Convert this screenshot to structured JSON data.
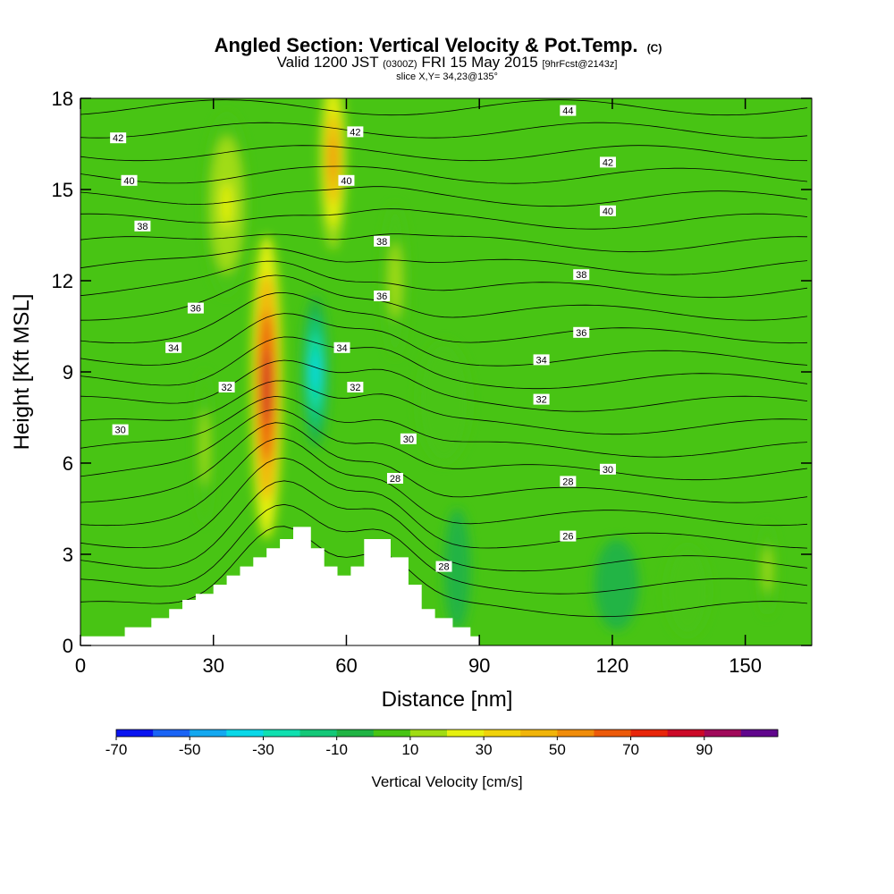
{
  "header": {
    "title_main": "Angled Section: Vertical Velocity & Pot.Temp.",
    "title_suffix": "(C)",
    "valid_a": "Valid 1200 JST",
    "valid_b": "(0300Z)",
    "valid_c": "FRI 15 May 2015",
    "valid_d": "[9hrFcst@2143z]",
    "slice": "slice X,Y= 34,23@135°"
  },
  "chart_data": {
    "type": "heatmap",
    "xlabel": "Distance [nm]",
    "ylabel": "Height [Kft MSL]",
    "xlim": [
      0,
      165
    ],
    "ylim": [
      0,
      18
    ],
    "x_ticks": [
      "0",
      "30",
      "60",
      "90",
      "120",
      "150"
    ],
    "x_tick_values": [
      0,
      30,
      60,
      90,
      120,
      150
    ],
    "y_ticks": [
      "0",
      "3",
      "6",
      "9",
      "12",
      "15",
      "18"
    ],
    "y_tick_values": [
      0,
      3,
      6,
      9,
      12,
      15,
      18
    ],
    "terrain": [
      [
        0,
        0.3
      ],
      [
        10,
        0.3
      ],
      [
        10,
        0.6
      ],
      [
        16,
        0.6
      ],
      [
        16,
        0.9
      ],
      [
        20,
        0.9
      ],
      [
        20,
        1.2
      ],
      [
        23,
        1.2
      ],
      [
        23,
        1.5
      ],
      [
        26,
        1.5
      ],
      [
        26,
        1.7
      ],
      [
        30,
        1.7
      ],
      [
        30,
        2.0
      ],
      [
        33,
        2.0
      ],
      [
        33,
        2.3
      ],
      [
        36,
        2.3
      ],
      [
        36,
        2.6
      ],
      [
        39,
        2.6
      ],
      [
        39,
        2.9
      ],
      [
        42,
        2.9
      ],
      [
        42,
        3.2
      ],
      [
        45,
        3.2
      ],
      [
        45,
        3.5
      ],
      [
        48,
        3.5
      ],
      [
        48,
        3.9
      ],
      [
        52,
        3.9
      ],
      [
        52,
        3.2
      ],
      [
        55,
        3.2
      ],
      [
        55,
        2.6
      ],
      [
        58,
        2.6
      ],
      [
        58,
        2.3
      ],
      [
        61,
        2.3
      ],
      [
        61,
        2.6
      ],
      [
        64,
        2.6
      ],
      [
        64,
        3.5
      ],
      [
        70,
        3.5
      ],
      [
        70,
        2.9
      ],
      [
        74,
        2.9
      ],
      [
        74,
        2.0
      ],
      [
        77,
        2.0
      ],
      [
        77,
        1.2
      ],
      [
        80,
        1.2
      ],
      [
        80,
        0.9
      ],
      [
        84,
        0.9
      ],
      [
        84,
        0.6
      ],
      [
        88,
        0.6
      ],
      [
        88,
        0.3
      ],
      [
        90,
        0.3
      ],
      [
        90,
        0
      ],
      [
        165,
        0
      ]
    ],
    "colorbar": {
      "label": "Vertical Velocity [cm/s]",
      "tick_labels": [
        "-70",
        "-50",
        "-30",
        "-10",
        "10",
        "30",
        "50",
        "70",
        "90"
      ],
      "levels": [
        -70,
        -60,
        -50,
        -40,
        -30,
        -20,
        -10,
        0,
        10,
        20,
        30,
        40,
        50,
        60,
        70,
        80,
        90,
        100
      ],
      "colors": [
        "#0a14f0",
        "#1a64f5",
        "#14a8f0",
        "#0ad8e8",
        "#10e0b0",
        "#14c878",
        "#20b444",
        "#48c414",
        "#a0dc14",
        "#e6f010",
        "#f0d20a",
        "#f0b40a",
        "#f08c0a",
        "#ec5a0a",
        "#e8260a",
        "#cc0a28",
        "#a00a5a",
        "#60068c"
      ]
    },
    "velocity_features": [
      {
        "x": 42,
        "y": 8.5,
        "rx": 3.5,
        "ry": 5.0,
        "value": 85
      },
      {
        "x": 33,
        "y": 14.5,
        "rx": 5,
        "ry": 3,
        "value": 25
      },
      {
        "x": 57,
        "y": 16,
        "rx": 3,
        "ry": 3,
        "value": 55
      },
      {
        "x": 53,
        "y": 9,
        "rx": 3,
        "ry": 2.5,
        "value": -35
      },
      {
        "x": 28,
        "y": 6.5,
        "rx": 2,
        "ry": 2.5,
        "value": 15
      },
      {
        "x": 71,
        "y": 12,
        "rx": 3,
        "ry": 2.5,
        "value": 15
      },
      {
        "x": 82,
        "y": 8,
        "rx": 6,
        "ry": 2,
        "value": 8
      },
      {
        "x": 137,
        "y": 1.8,
        "rx": 5,
        "ry": 1.5,
        "value": 8
      },
      {
        "x": 121,
        "y": 2,
        "rx": 5,
        "ry": 1.5,
        "value": -10
      },
      {
        "x": 85,
        "y": 2.5,
        "rx": 3,
        "ry": 2,
        "value": -10
      },
      {
        "x": 155,
        "y": 2.5,
        "rx": 2,
        "ry": 1.5,
        "value": 15
      }
    ],
    "contour_labels": [
      {
        "x": 8.5,
        "y": 16.7,
        "text": "42"
      },
      {
        "x": 11,
        "y": 15.3,
        "text": "40"
      },
      {
        "x": 14,
        "y": 13.8,
        "text": "38"
      },
      {
        "x": 26,
        "y": 11.1,
        "text": "36"
      },
      {
        "x": 21,
        "y": 9.8,
        "text": "34"
      },
      {
        "x": 9,
        "y": 7.1,
        "text": "30"
      },
      {
        "x": 33,
        "y": 8.5,
        "text": "32"
      },
      {
        "x": 62,
        "y": 16.9,
        "text": "42"
      },
      {
        "x": 60,
        "y": 15.3,
        "text": "40"
      },
      {
        "x": 68,
        "y": 13.3,
        "text": "38"
      },
      {
        "x": 68,
        "y": 11.5,
        "text": "36"
      },
      {
        "x": 59,
        "y": 9.8,
        "text": "34"
      },
      {
        "x": 62,
        "y": 8.5,
        "text": "32"
      },
      {
        "x": 74,
        "y": 6.8,
        "text": "30"
      },
      {
        "x": 71,
        "y": 5.5,
        "text": "28"
      },
      {
        "x": 82,
        "y": 2.6,
        "text": "28"
      },
      {
        "x": 110,
        "y": 17.6,
        "text": "44"
      },
      {
        "x": 119,
        "y": 15.9,
        "text": "42"
      },
      {
        "x": 119,
        "y": 14.3,
        "text": "40"
      },
      {
        "x": 113,
        "y": 12.2,
        "text": "38"
      },
      {
        "x": 113,
        "y": 10.3,
        "text": "36"
      },
      {
        "x": 104,
        "y": 9.4,
        "text": "34"
      },
      {
        "x": 104,
        "y": 8.1,
        "text": "32"
      },
      {
        "x": 119,
        "y": 5.8,
        "text": "30"
      },
      {
        "x": 110,
        "y": 5.4,
        "text": "28"
      },
      {
        "x": 110,
        "y": 3.6,
        "text": "26"
      }
    ]
  }
}
